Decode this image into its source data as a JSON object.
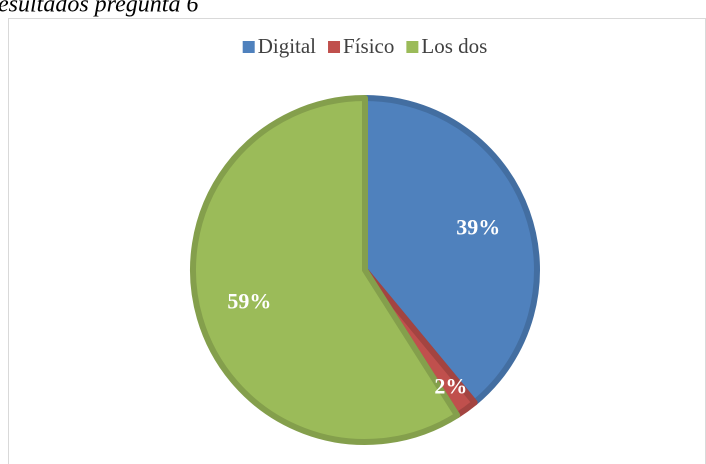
{
  "chart_data": {
    "type": "pie",
    "title": "esultados pregunta 6",
    "categories": [
      "Digital",
      "Físico",
      "Los dos"
    ],
    "values": [
      39,
      2,
      59
    ],
    "value_labels": [
      "39%",
      "2%",
      "59%"
    ],
    "colors": [
      "#4f81bd",
      "#c0504d",
      "#9bbb59"
    ],
    "legend": "top"
  }
}
